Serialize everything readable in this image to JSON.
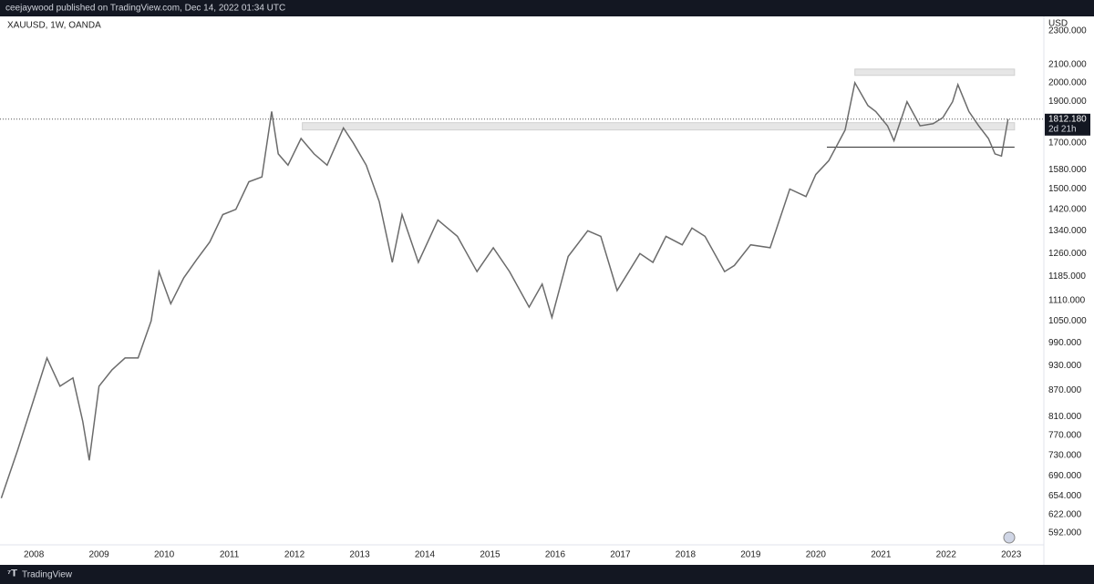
{
  "chart_data": {
    "type": "line",
    "header": "ceejaywood published on TradingView.com, Dec 14, 2022 01:34 UTC",
    "title": "XAUUSD, 1W, OANDA",
    "y_label": "USD",
    "brand": "TradingView",
    "color": "#6b6b6b",
    "log_scale": true,
    "grid": false,
    "x": [
      2007.5,
      2007.75,
      2008.0,
      2008.2,
      2008.4,
      2008.6,
      2008.75,
      2008.85,
      2009.0,
      2009.2,
      2009.4,
      2009.6,
      2009.8,
      2009.92,
      2010.1,
      2010.3,
      2010.5,
      2010.7,
      2010.9,
      2011.1,
      2011.3,
      2011.5,
      2011.65,
      2011.75,
      2011.9,
      2012.1,
      2012.3,
      2012.5,
      2012.75,
      2012.9,
      2013.1,
      2013.3,
      2013.5,
      2013.65,
      2013.9,
      2014.2,
      2014.5,
      2014.8,
      2015.05,
      2015.3,
      2015.6,
      2015.8,
      2015.95,
      2016.2,
      2016.5,
      2016.7,
      2016.95,
      2017.3,
      2017.5,
      2017.7,
      2017.95,
      2018.1,
      2018.3,
      2018.6,
      2018.75,
      2019.0,
      2019.3,
      2019.6,
      2019.85,
      2020.0,
      2020.2,
      2020.45,
      2020.6,
      2020.8,
      2020.92,
      2021.1,
      2021.2,
      2021.4,
      2021.6,
      2021.8,
      2021.95,
      2022.1,
      2022.18,
      2022.35,
      2022.5,
      2022.65,
      2022.75,
      2022.85,
      2022.95
    ],
    "values": [
      650,
      740,
      850,
      950,
      880,
      900,
      800,
      720,
      880,
      920,
      950,
      950,
      1050,
      1200,
      1100,
      1180,
      1240,
      1300,
      1400,
      1420,
      1530,
      1550,
      1850,
      1650,
      1600,
      1720,
      1650,
      1600,
      1770,
      1700,
      1600,
      1450,
      1230,
      1400,
      1230,
      1380,
      1320,
      1200,
      1280,
      1200,
      1090,
      1160,
      1060,
      1250,
      1340,
      1320,
      1140,
      1260,
      1230,
      1320,
      1290,
      1350,
      1320,
      1200,
      1220,
      1290,
      1280,
      1500,
      1470,
      1560,
      1620,
      1760,
      2000,
      1880,
      1850,
      1780,
      1710,
      1900,
      1780,
      1790,
      1820,
      1900,
      1990,
      1850,
      1780,
      1720,
      1650,
      1640,
      1812.18
    ],
    "last_price": {
      "value": 1812.18,
      "label": "1812.180"
    },
    "countdown": "2d 21h",
    "zones": [
      {
        "low": 2040,
        "high": 2075,
        "from": 2020.6,
        "to": 2023.05
      },
      {
        "low": 1760,
        "high": 1795,
        "from": 2012.12,
        "to": 2023.05
      }
    ],
    "hline": {
      "value": 1680,
      "from": 2020.17,
      "to": 2023.05
    },
    "xlim": [
      2007.48,
      2023.5
    ],
    "xticks": [
      2008,
      2009,
      2010,
      2011,
      2012,
      2013,
      2014,
      2015,
      2016,
      2017,
      2018,
      2019,
      2020,
      2021,
      2022,
      2023
    ],
    "ylim": [
      573,
      2393
    ],
    "yticks": [
      {
        "value": 2300,
        "label": "2300.000"
      },
      {
        "value": 2100,
        "label": "2100.000"
      },
      {
        "value": 2000,
        "label": "2000.000"
      },
      {
        "value": 1900,
        "label": "1900.000"
      },
      {
        "value": 1700,
        "label": "1700.000"
      },
      {
        "value": 1580,
        "label": "1580.000"
      },
      {
        "value": 1500,
        "label": "1500.000"
      },
      {
        "value": 1420,
        "label": "1420.000"
      },
      {
        "value": 1340,
        "label": "1340.000"
      },
      {
        "value": 1260,
        "label": "1260.000"
      },
      {
        "value": 1185,
        "label": "1185.000"
      },
      {
        "value": 1110,
        "label": "1110.000"
      },
      {
        "value": 1050,
        "label": "1050.000"
      },
      {
        "value": 990,
        "label": "990.000"
      },
      {
        "value": 930,
        "label": "930.000"
      },
      {
        "value": 870,
        "label": "870.000"
      },
      {
        "value": 810,
        "label": "810.000"
      },
      {
        "value": 770,
        "label": "770.000"
      },
      {
        "value": 730,
        "label": "730.000"
      },
      {
        "value": 690,
        "label": "690.000"
      },
      {
        "value": 654,
        "label": "654.000"
      },
      {
        "value": 622,
        "label": "622.000"
      },
      {
        "value": 592,
        "label": "592.000"
      }
    ]
  }
}
